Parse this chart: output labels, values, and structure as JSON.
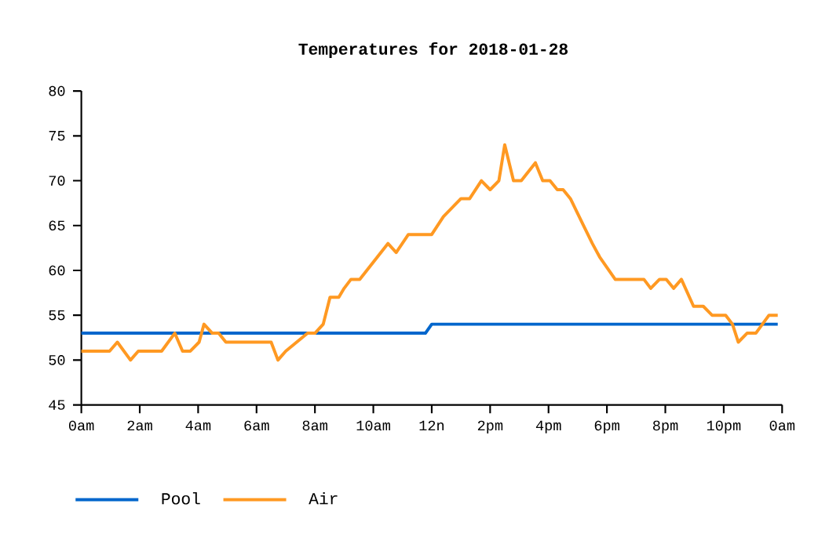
{
  "chart_data": {
    "type": "line",
    "title": "Temperatures for 2018-01-28",
    "xlim": [
      "2018-01-28T00:00",
      "2018-01-29T00:00"
    ],
    "ylim": [
      45,
      80
    ],
    "xticks": [
      {
        "value": "2018-01-28T00:00",
        "label": "0am"
      },
      {
        "value": "2018-01-28T02:00",
        "label": "2am"
      },
      {
        "value": "2018-01-28T04:00",
        "label": "4am"
      },
      {
        "value": "2018-01-28T06:00",
        "label": "6am"
      },
      {
        "value": "2018-01-28T08:00",
        "label": "8am"
      },
      {
        "value": "2018-01-28T10:00",
        "label": "10am"
      },
      {
        "value": "2018-01-28T12:00",
        "label": "12n"
      },
      {
        "value": "2018-01-28T14:00",
        "label": "2pm"
      },
      {
        "value": "2018-01-28T16:00",
        "label": "4pm"
      },
      {
        "value": "2018-01-28T18:00",
        "label": "6pm"
      },
      {
        "value": "2018-01-28T20:00",
        "label": "8pm"
      },
      {
        "value": "2018-01-28T22:00",
        "label": "10pm"
      },
      {
        "value": "2018-01-29T00:00",
        "label": "0am"
      }
    ],
    "yticks": [
      45,
      50,
      55,
      60,
      65,
      70,
      75,
      80
    ],
    "grid": false,
    "legend": "bottom left",
    "marker": "none",
    "line_style": "solid",
    "series": [
      {
        "name": "Pool",
        "color": "#0066cc",
        "x": [
          "2018-01-28T00:00",
          "2018-01-28T11:47",
          "2018-01-28T12:00",
          "2018-01-28T23:51"
        ],
        "values": [
          53,
          53,
          54,
          54
        ]
      },
      {
        "name": "Air",
        "color": "#ff9922",
        "x": [
          "2018-01-28T00:00",
          "2018-01-28T00:58",
          "2018-01-28T01:14",
          "2018-01-28T01:41",
          "2018-01-28T01:57",
          "2018-01-28T02:45",
          "2018-01-28T03:12",
          "2018-01-28T03:28",
          "2018-01-28T03:44",
          "2018-01-28T04:02",
          "2018-01-28T04:12",
          "2018-01-28T04:29",
          "2018-01-28T04:42",
          "2018-01-28T04:57",
          "2018-01-28T06:30",
          "2018-01-28T06:44",
          "2018-01-28T07:00",
          "2018-01-28T07:45",
          "2018-01-28T08:00",
          "2018-01-28T08:17",
          "2018-01-28T08:31",
          "2018-01-28T08:49",
          "2018-01-28T09:00",
          "2018-01-28T09:14",
          "2018-01-28T09:32",
          "2018-01-28T10:30",
          "2018-01-28T10:47",
          "2018-01-28T11:12",
          "2018-01-28T12:00",
          "2018-01-28T12:24",
          "2018-01-28T13:00",
          "2018-01-28T13:18",
          "2018-01-28T13:42",
          "2018-01-28T14:00",
          "2018-01-28T14:18",
          "2018-01-28T14:30",
          "2018-01-28T14:48",
          "2018-01-28T15:04",
          "2018-01-28T15:33",
          "2018-01-28T15:48",
          "2018-01-28T16:03",
          "2018-01-28T16:18",
          "2018-01-28T16:30",
          "2018-01-28T16:45",
          "2018-01-28T17:12",
          "2018-01-28T17:30",
          "2018-01-28T17:45",
          "2018-01-28T18:17",
          "2018-01-28T19:16",
          "2018-01-28T19:30",
          "2018-01-28T19:48",
          "2018-01-28T20:02",
          "2018-01-28T20:17",
          "2018-01-28T20:33",
          "2018-01-28T20:58",
          "2018-01-28T21:18",
          "2018-01-28T21:36",
          "2018-01-28T22:04",
          "2018-01-28T22:18",
          "2018-01-28T22:30",
          "2018-01-28T22:48",
          "2018-01-28T23:06",
          "2018-01-28T23:33",
          "2018-01-28T23:51"
        ],
        "values": [
          51,
          51,
          52,
          50,
          51,
          51,
          53,
          51,
          51,
          52,
          54,
          53,
          53,
          52,
          52,
          50,
          51,
          53,
          53,
          54,
          57,
          57,
          58,
          59,
          59,
          63,
          62,
          64,
          64,
          66,
          68,
          68,
          70,
          69,
          70,
          74,
          70,
          70,
          72,
          70,
          70,
          69,
          69,
          68,
          65,
          63,
          61.5,
          59,
          59,
          58,
          59,
          59,
          58,
          59,
          56,
          56,
          55,
          55,
          54,
          52,
          53,
          53,
          55,
          55
        ]
      }
    ]
  }
}
